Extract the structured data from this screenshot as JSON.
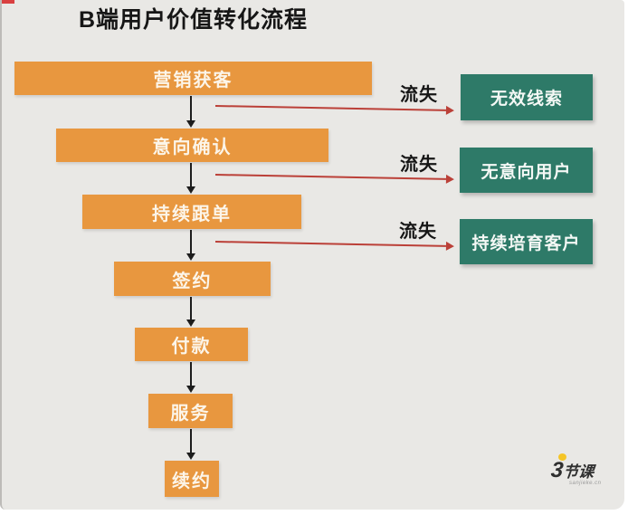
{
  "page": {
    "title": "B端用户价值转化流程"
  },
  "funnel": {
    "steps": [
      {
        "label": "营销获客"
      },
      {
        "label": "意向确认"
      },
      {
        "label": "持续跟单"
      },
      {
        "label": "签约"
      },
      {
        "label": "付款"
      },
      {
        "label": "服务"
      },
      {
        "label": "续约"
      }
    ]
  },
  "churn": {
    "rows": [
      {
        "label": "流失",
        "outcome": "无效线索"
      },
      {
        "label": "流失",
        "outcome": "无意向用户"
      },
      {
        "label": "流失",
        "outcome": "持续培育客户"
      }
    ]
  },
  "logo": {
    "number": "3",
    "word": "节课",
    "domain": "sanjieke.cn"
  },
  "colors": {
    "bg": "#e9e8e5",
    "orange": "#e8973f",
    "green": "#2e7a68",
    "red": "#bb4038",
    "ink": "#161616",
    "box-text": "#fcf5e9",
    "logo-yellow": "#f5c527"
  }
}
